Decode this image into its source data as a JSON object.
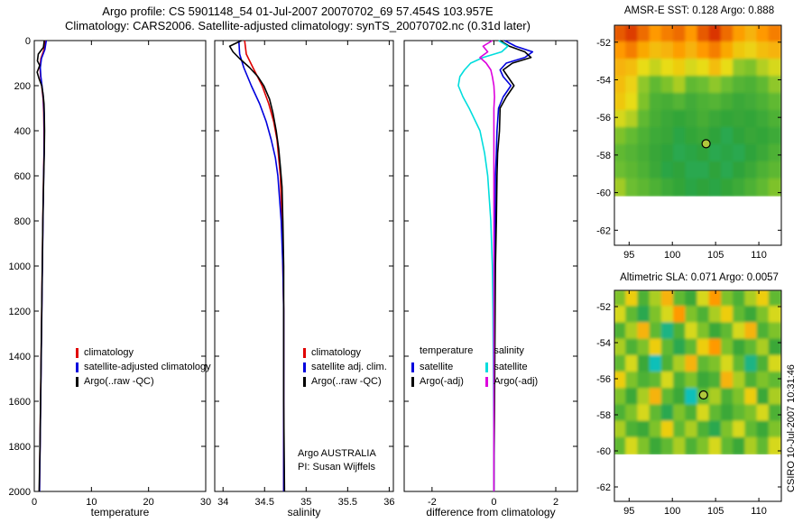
{
  "header": {
    "title_line1": "Argo profile: CS 5901148_54 01-Jul-2007 20070702_69 57.454S 103.957E",
    "title_line2": "Climatology: CARS2006. Satellite-adjusted climatology: synTS_20070702.nc (0.31d later)"
  },
  "side_text": "CSIRO 10-Jul-2007 10:31:46",
  "chart_data": [
    {
      "type": "line",
      "xlabel": "temperature",
      "xlim": [
        0,
        30
      ],
      "xticks": [
        0,
        10,
        20,
        30
      ],
      "ylim": [
        0,
        2000
      ],
      "yticks": [
        0,
        200,
        400,
        600,
        800,
        1000,
        1200,
        1400,
        1600,
        1800,
        2000
      ],
      "series": [
        {
          "name": "climatology",
          "color": "#e00000",
          "depth": [
            0,
            40,
            80,
            120,
            160,
            200,
            260,
            320,
            400,
            500,
            600,
            800,
            1000,
            1200,
            1400,
            1600,
            1800,
            2000
          ],
          "values": [
            1.9,
            1.7,
            1.15,
            1.0,
            1.1,
            1.3,
            1.55,
            1.65,
            1.7,
            1.7,
            1.62,
            1.5,
            1.4,
            1.3,
            1.2,
            1.1,
            1.0,
            0.9
          ]
        },
        {
          "name": "satellite-adjusted climatology",
          "color": "#0000dd",
          "depth": [
            0,
            40,
            80,
            120,
            160,
            200,
            260,
            320,
            400,
            500,
            600,
            800,
            1000,
            1200,
            1400,
            1600,
            1800,
            2000
          ],
          "values": [
            2.1,
            1.85,
            1.25,
            1.05,
            1.15,
            1.35,
            1.6,
            1.7,
            1.75,
            1.72,
            1.64,
            1.52,
            1.42,
            1.32,
            1.22,
            1.12,
            1.02,
            0.92
          ]
        },
        {
          "name": "Argo(..raw -QC)",
          "color": "#000000",
          "depth": [
            0,
            30,
            60,
            90,
            110,
            140,
            170,
            200,
            240,
            280,
            320,
            400,
            500,
            600,
            800,
            1000,
            1200,
            1400,
            1600,
            1800,
            2000
          ],
          "values": [
            1.75,
            1.6,
            0.7,
            0.55,
            0.95,
            0.5,
            0.85,
            1.3,
            1.55,
            1.7,
            1.75,
            1.8,
            1.75,
            1.65,
            1.5,
            1.4,
            1.3,
            1.2,
            1.1,
            1.0,
            0.85
          ]
        }
      ]
    },
    {
      "type": "line",
      "xlabel": "salinity",
      "xlim": [
        33.9,
        36.05
      ],
      "xticks": [
        34,
        34.5,
        35,
        35.5,
        36
      ],
      "ylim": [
        0,
        2000
      ],
      "yticks": [
        0,
        200,
        400,
        600,
        800,
        1000,
        1200,
        1400,
        1600,
        1800,
        2000
      ],
      "annotations": [
        "Argo AUSTRALIA",
        "PI: Susan Wijffels"
      ],
      "series": [
        {
          "name": "climatology",
          "color": "#e00000",
          "depth": [
            0,
            60,
            120,
            200,
            280,
            360,
            440,
            520,
            600,
            700,
            800,
            1000,
            1200,
            1600,
            2000
          ],
          "values": [
            34.26,
            34.28,
            34.36,
            34.47,
            34.55,
            34.61,
            34.65,
            34.67,
            34.69,
            34.7,
            34.71,
            34.72,
            34.73,
            34.73,
            34.73
          ]
        },
        {
          "name": "satellite adj. clim.",
          "color": "#0000dd",
          "depth": [
            0,
            60,
            120,
            200,
            280,
            360,
            440,
            520,
            600,
            700,
            800,
            1000,
            1200,
            1600,
            2000
          ],
          "values": [
            34.19,
            34.2,
            34.25,
            34.34,
            34.44,
            34.52,
            34.58,
            34.63,
            34.66,
            34.68,
            34.7,
            34.72,
            34.73,
            34.73,
            34.73
          ]
        },
        {
          "name": "Argo(..raw -QC)",
          "color": "#000000",
          "depth": [
            0,
            25,
            50,
            80,
            120,
            160,
            200,
            260,
            320,
            400,
            480,
            560,
            650,
            800,
            1000,
            1200,
            1600,
            2000
          ],
          "values": [
            34.22,
            34.08,
            34.12,
            34.2,
            34.32,
            34.42,
            34.49,
            34.56,
            34.6,
            34.64,
            34.67,
            34.69,
            34.71,
            34.72,
            34.73,
            34.73,
            34.73,
            34.74
          ]
        }
      ]
    },
    {
      "type": "line",
      "xlabel": "difference from climatology",
      "xlim": [
        -2.9,
        2.7
      ],
      "xticks": [
        -2,
        0,
        2
      ],
      "ylim": [
        0,
        2000
      ],
      "yticks": [
        0,
        200,
        400,
        600,
        800,
        1000,
        1200,
        1400,
        1600,
        1800,
        2000
      ],
      "depth": [
        0,
        25,
        50,
        75,
        100,
        130,
        160,
        200,
        250,
        300,
        400,
        500,
        600,
        800,
        1000,
        1200,
        1400,
        1600,
        1800,
        2000
      ],
      "series": [
        {
          "name": "temperature satellite",
          "color": "#0000dd",
          "values": [
            0.35,
            0.7,
            1.25,
            1.0,
            0.4,
            0.2,
            0.3,
            0.55,
            0.3,
            0.15,
            0.1,
            0.08,
            0.05,
            0.04,
            0.02,
            0.02,
            0.01,
            0.01,
            0.0,
            0.0
          ]
        },
        {
          "name": "temperature Argo(-adj)",
          "color": "#000000",
          "values": [
            0.2,
            0.5,
            1.0,
            1.2,
            0.6,
            0.3,
            0.45,
            0.65,
            0.4,
            0.2,
            0.18,
            0.12,
            0.1,
            0.08,
            0.05,
            0.04,
            0.03,
            0.02,
            0.01,
            0.0
          ]
        },
        {
          "name": "salinity satellite",
          "color": "#00dddd",
          "values": [
            0.15,
            0.45,
            0.25,
            -0.35,
            -0.75,
            -0.95,
            -1.1,
            -1.15,
            -1.0,
            -0.8,
            -0.45,
            -0.3,
            -0.2,
            -0.1,
            -0.05,
            -0.03,
            -0.02,
            -0.01,
            0.0,
            0.0
          ]
        },
        {
          "name": "salinity Argo(-adj)",
          "color": "#dd00dd",
          "values": [
            -0.05,
            -0.35,
            -0.2,
            -0.45,
            -0.25,
            -0.1,
            -0.05,
            0.0,
            0.02,
            0.0,
            0.0,
            0.0,
            0.0,
            0.0,
            0.0,
            0.0,
            0.0,
            0.0,
            0.0,
            0.0
          ]
        }
      ],
      "legend": {
        "groups": [
          {
            "header": "temperature",
            "entries": [
              {
                "label": "satellite",
                "color": "#0000dd"
              },
              {
                "label": "Argo(-adj)",
                "color": "#000000"
              }
            ]
          },
          {
            "header": "salinity",
            "entries": [
              {
                "label": "satellite",
                "color": "#00dddd"
              },
              {
                "label": "Argo(-adj)",
                "color": "#dd00dd"
              }
            ]
          }
        ]
      }
    },
    {
      "type": "heatmap",
      "title": "AMSR-E SST: 0.128 Argo: 0.888",
      "xlim": [
        93.3,
        112.6
      ],
      "ylim": [
        -51.1,
        -62.8
      ],
      "xticks": [
        95,
        100,
        105,
        110
      ],
      "yticks": [
        -52,
        -54,
        -56,
        -58,
        -60,
        -62
      ],
      "data_lat_range": [
        -51.1,
        -60.2
      ],
      "colormap": [
        [
          0.0,
          "#0000cc"
        ],
        [
          0.25,
          "#00ccee"
        ],
        [
          0.42,
          "#2fa33a"
        ],
        [
          0.58,
          "#6cbe30"
        ],
        [
          0.72,
          "#e8dc16"
        ],
        [
          0.85,
          "#ff9900"
        ],
        [
          1.0,
          "#cc1100"
        ]
      ],
      "marker": {
        "lon": 103.9,
        "lat": -57.4,
        "color": "#b0c83c"
      },
      "grid": [
        [
          0.92,
          0.95,
          0.9,
          0.85,
          0.88,
          0.9,
          0.85,
          0.92,
          0.96,
          0.9,
          0.84,
          0.8,
          0.85,
          0.88
        ],
        [
          0.85,
          0.88,
          0.82,
          0.78,
          0.8,
          0.84,
          0.8,
          0.85,
          0.88,
          0.82,
          0.76,
          0.74,
          0.78,
          0.8
        ],
        [
          0.8,
          0.78,
          0.72,
          0.68,
          0.72,
          0.75,
          0.7,
          0.72,
          0.78,
          0.72,
          0.62,
          0.6,
          0.66,
          0.7
        ],
        [
          0.78,
          0.74,
          0.62,
          0.55,
          0.6,
          0.65,
          0.55,
          0.58,
          0.62,
          0.58,
          0.52,
          0.5,
          0.55,
          0.62
        ],
        [
          0.76,
          0.72,
          0.6,
          0.5,
          0.48,
          0.52,
          0.47,
          0.5,
          0.52,
          0.48,
          0.45,
          0.47,
          0.5,
          0.55
        ],
        [
          0.7,
          0.66,
          0.55,
          0.48,
          0.45,
          0.43,
          0.45,
          0.48,
          0.45,
          0.43,
          0.44,
          0.43,
          0.46,
          0.5
        ],
        [
          0.6,
          0.56,
          0.5,
          0.46,
          0.44,
          0.41,
          0.43,
          0.45,
          0.42,
          0.4,
          0.42,
          0.44,
          0.43,
          0.46
        ],
        [
          0.55,
          0.52,
          0.48,
          0.44,
          0.42,
          0.4,
          0.41,
          0.42,
          0.4,
          0.41,
          0.4,
          0.42,
          0.45,
          0.5
        ],
        [
          0.58,
          0.54,
          0.5,
          0.45,
          0.41,
          0.42,
          0.4,
          0.4,
          0.42,
          0.4,
          0.42,
          0.45,
          0.5,
          0.54
        ],
        [
          0.64,
          0.58,
          0.54,
          0.5,
          0.46,
          0.43,
          0.41,
          0.42,
          0.41,
          0.43,
          0.46,
          0.5,
          0.55,
          0.6
        ]
      ]
    },
    {
      "type": "heatmap",
      "title": "Altimetric SLA: 0.071 Argo: 0.0057",
      "xlim": [
        93.3,
        112.6
      ],
      "ylim": [
        -51.1,
        -62.8
      ],
      "xticks": [
        95,
        100,
        105,
        110
      ],
      "yticks": [
        -52,
        -54,
        -56,
        -58,
        -60,
        -62
      ],
      "data_lat_range": [
        -51.1,
        -60.2
      ],
      "colormap": [
        [
          0.0,
          "#0000cc"
        ],
        [
          0.25,
          "#00ccee"
        ],
        [
          0.42,
          "#2fa33a"
        ],
        [
          0.58,
          "#6cbe30"
        ],
        [
          0.72,
          "#e8dc16"
        ],
        [
          0.85,
          "#ff9900"
        ],
        [
          1.0,
          "#cc1100"
        ]
      ],
      "marker": {
        "lon": 103.6,
        "lat": -56.9,
        "color": "#b0c83c"
      },
      "grid": [
        [
          0.6,
          0.75,
          0.5,
          0.65,
          0.8,
          0.55,
          0.45,
          0.7,
          0.85,
          0.6,
          0.5,
          0.65,
          0.75,
          0.55
        ],
        [
          0.7,
          0.55,
          0.4,
          0.6,
          0.7,
          0.85,
          0.6,
          0.5,
          0.65,
          0.75,
          0.55,
          0.45,
          0.6,
          0.7
        ],
        [
          0.5,
          0.65,
          0.8,
          0.55,
          0.35,
          0.5,
          0.7,
          0.6,
          0.45,
          0.55,
          0.7,
          0.8,
          0.5,
          0.6
        ],
        [
          0.65,
          0.5,
          0.6,
          0.75,
          0.55,
          0.4,
          0.55,
          0.75,
          0.85,
          0.6,
          0.45,
          0.55,
          0.65,
          0.45
        ],
        [
          0.55,
          0.7,
          0.45,
          0.3,
          0.5,
          0.65,
          0.8,
          0.55,
          0.6,
          0.7,
          0.55,
          0.35,
          0.5,
          0.7
        ],
        [
          0.75,
          0.6,
          0.5,
          0.55,
          0.7,
          0.5,
          0.6,
          0.45,
          0.5,
          0.8,
          0.65,
          0.5,
          0.6,
          0.55
        ],
        [
          0.6,
          0.45,
          0.65,
          0.8,
          0.55,
          0.45,
          0.3,
          0.55,
          0.65,
          0.5,
          0.6,
          0.75,
          0.45,
          0.65
        ],
        [
          0.5,
          0.6,
          0.7,
          0.55,
          0.4,
          0.6,
          0.5,
          0.7,
          0.55,
          0.45,
          0.55,
          0.6,
          0.7,
          0.5
        ],
        [
          0.65,
          0.5,
          0.45,
          0.6,
          0.75,
          0.55,
          0.65,
          0.5,
          0.4,
          0.6,
          0.7,
          0.55,
          0.45,
          0.6
        ],
        [
          0.55,
          0.7,
          0.6,
          0.45,
          0.55,
          0.65,
          0.5,
          0.6,
          0.7,
          0.55,
          0.45,
          0.65,
          0.55,
          0.7
        ]
      ]
    }
  ]
}
